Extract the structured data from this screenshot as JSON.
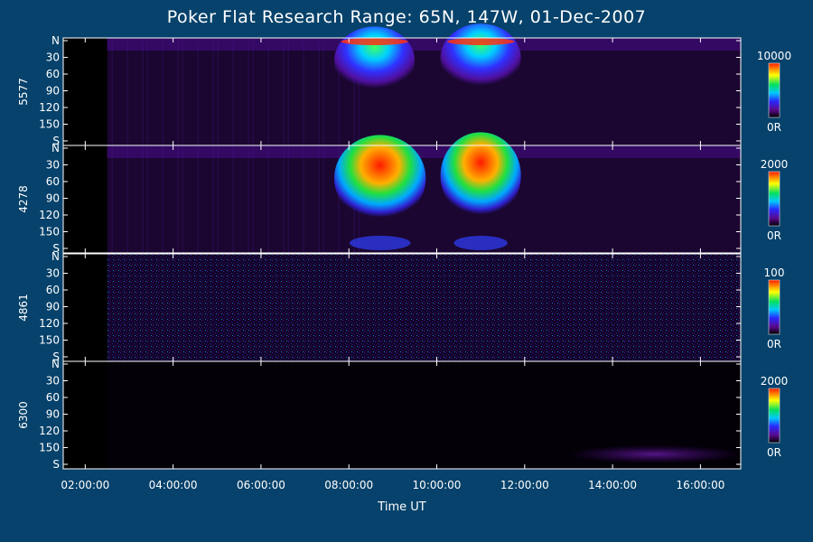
{
  "chart_data": {
    "type": "heatmap",
    "title": "Poker Flat Research Range: 65N, 147W, 01-Dec-2007",
    "xlabel": "Time UT",
    "xlim": [
      "01:30:00",
      "16:55:00"
    ],
    "xticks": [
      "02:00:00",
      "04:00:00",
      "06:00:00",
      "08:00:00",
      "10:00:00",
      "12:00:00",
      "14:00:00",
      "16:00:00"
    ],
    "y_axis": {
      "range": [
        0,
        180
      ],
      "ticks": [
        "N",
        "30",
        "60",
        "90",
        "120",
        "150",
        "S"
      ],
      "tick_values": [
        0,
        30,
        60,
        90,
        120,
        150,
        180
      ]
    },
    "colormap": "rainbow (black-purple-blue-cyan-green-yellow-red)",
    "panels": [
      {
        "name": "5577",
        "colorbar_max": "10000",
        "colorbar_min": "0R",
        "bright_features": [
          {
            "time_start": "07:40",
            "time_end": "09:30",
            "scan_deg_center": 20,
            "level": "high"
          },
          {
            "time_start": "10:05",
            "time_end": "11:55",
            "scan_deg_center": 15,
            "level": "high"
          }
        ]
      },
      {
        "name": "4278",
        "colorbar_max": "2000",
        "colorbar_min": "0R",
        "bright_features": [
          {
            "time_start": "07:40",
            "time_end": "09:45",
            "scan_deg_center": 25,
            "level": "saturated"
          },
          {
            "time_start": "10:05",
            "time_end": "11:55",
            "scan_deg_center": 20,
            "level": "saturated"
          }
        ]
      },
      {
        "name": "4861",
        "colorbar_max": "100",
        "colorbar_min": "0R",
        "bright_features": [
          {
            "time_start": "02:30",
            "time_end": "16:55",
            "scan_deg_center": 90,
            "level": "noise"
          }
        ]
      },
      {
        "name": "6300",
        "colorbar_max": "2000",
        "colorbar_min": "0R",
        "bright_features": [
          {
            "time_start": "13:00",
            "time_end": "16:55",
            "scan_deg_center": 170,
            "level": "low"
          }
        ]
      }
    ]
  }
}
